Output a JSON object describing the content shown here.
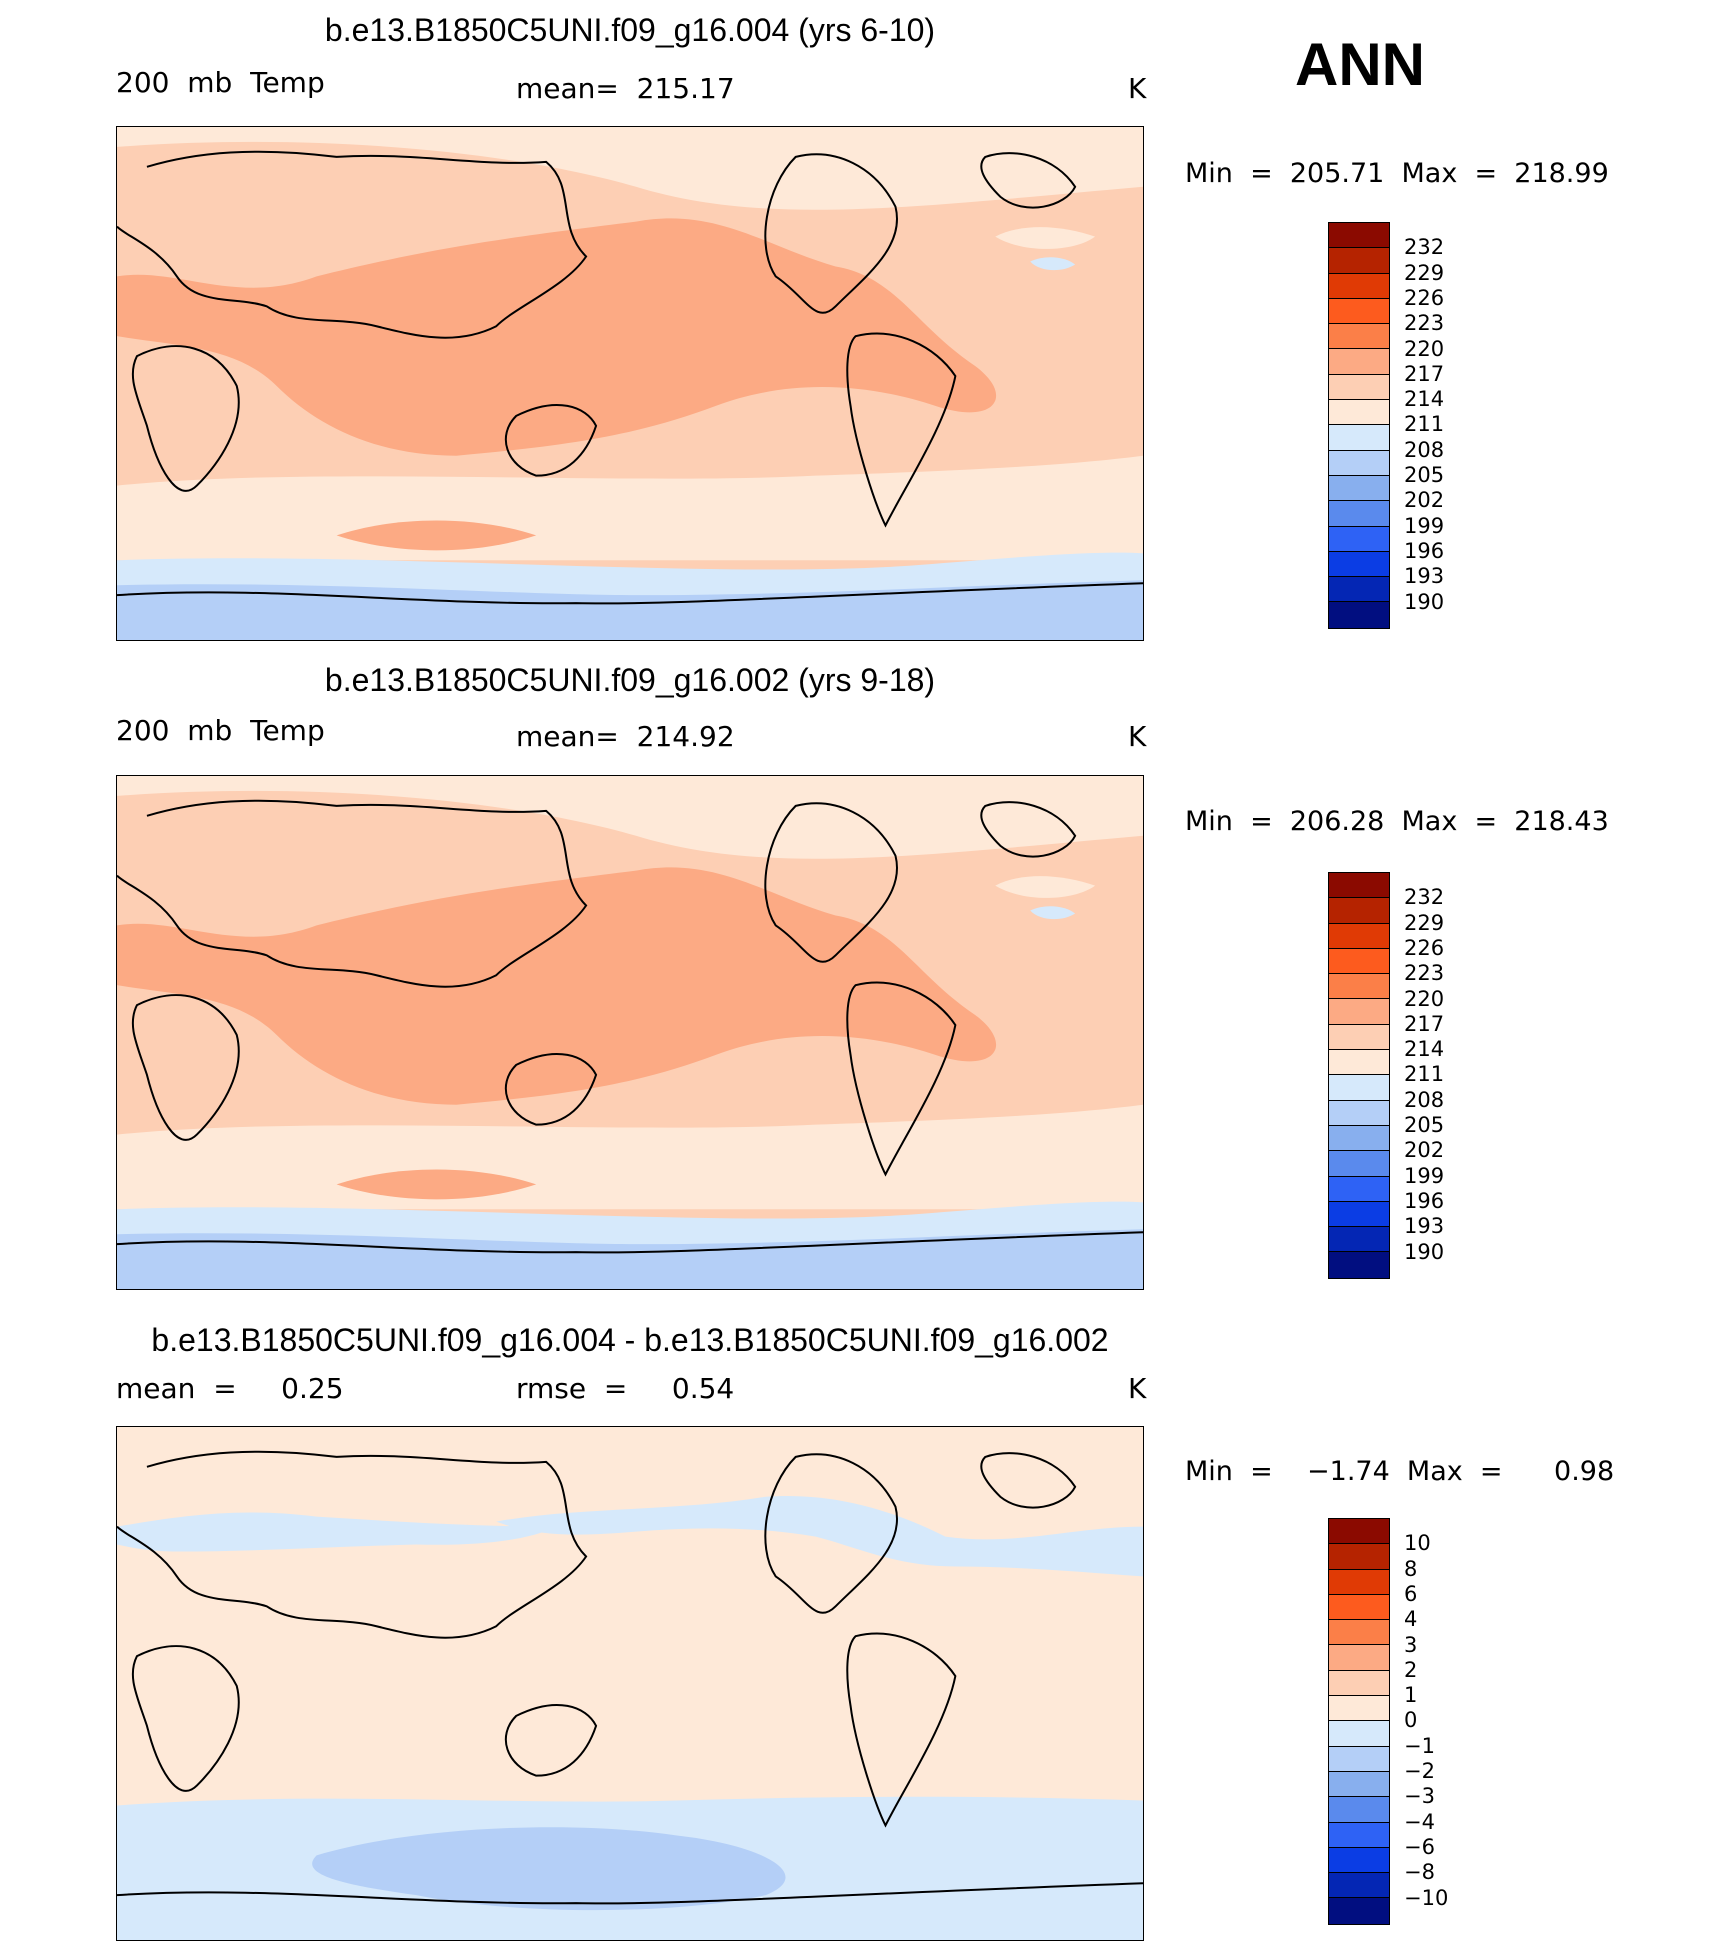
{
  "season": "ANN",
  "panels": [
    {
      "title": "b.e13.B1850C5UNI.f09_g16.004 (yrs 6-10)",
      "left_label": "200  mb  Temp",
      "center_label": "mean=  215.17",
      "units": "K",
      "minmax": "Min  =  205.71  Max  =  218.99",
      "map_description": "200 mb temperature, annual mean"
    },
    {
      "title": "b.e13.B1850C5UNI.f09_g16.002 (yrs 9-18)",
      "left_label": "200  mb  Temp",
      "center_label": "mean=  214.92",
      "units": "K",
      "minmax": "Min  =  206.28  Max  =  218.43",
      "map_description": "200 mb temperature, annual mean"
    },
    {
      "title": "b.e13.B1850C5UNI.f09_g16.004 - b.e13.B1850C5UNI.f09_g16.002",
      "left_label": "mean  =     0.25",
      "center_label": "rmse  =     0.54",
      "units": "K",
      "minmax": "Min  =    −1.74  Max  =      0.98",
      "map_description": "difference map"
    }
  ],
  "colorbars": {
    "abs": {
      "labels": [
        "232",
        "229",
        "226",
        "223",
        "220",
        "217",
        "214",
        "211",
        "208",
        "205",
        "202",
        "199",
        "196",
        "193",
        "190"
      ],
      "colors": [
        "#8b0a00",
        "#b52300",
        "#e03a05",
        "#fd5b1e",
        "#fb7f48",
        "#fcaa84",
        "#fdcfb4",
        "#fee9d8",
        "#d6e9fb",
        "#b4cff7",
        "#88afee",
        "#5a8aed",
        "#2e62f5",
        "#0b3de4",
        "#0426b4",
        "#010e80"
      ]
    },
    "diff": {
      "labels": [
        "10",
        "8",
        "6",
        "4",
        "3",
        "2",
        "1",
        "0",
        "−1",
        "−2",
        "−3",
        "−4",
        "−6",
        "−8",
        "−10"
      ],
      "colors": [
        "#8b0a00",
        "#b52300",
        "#e03a05",
        "#fd5b1e",
        "#fb7f48",
        "#fcaa84",
        "#fdcfb4",
        "#fee9d8",
        "#d6e9fb",
        "#b4cff7",
        "#88afee",
        "#5a8aed",
        "#2e62f5",
        "#0b3de4",
        "#0426b4",
        "#010e80"
      ]
    }
  }
}
